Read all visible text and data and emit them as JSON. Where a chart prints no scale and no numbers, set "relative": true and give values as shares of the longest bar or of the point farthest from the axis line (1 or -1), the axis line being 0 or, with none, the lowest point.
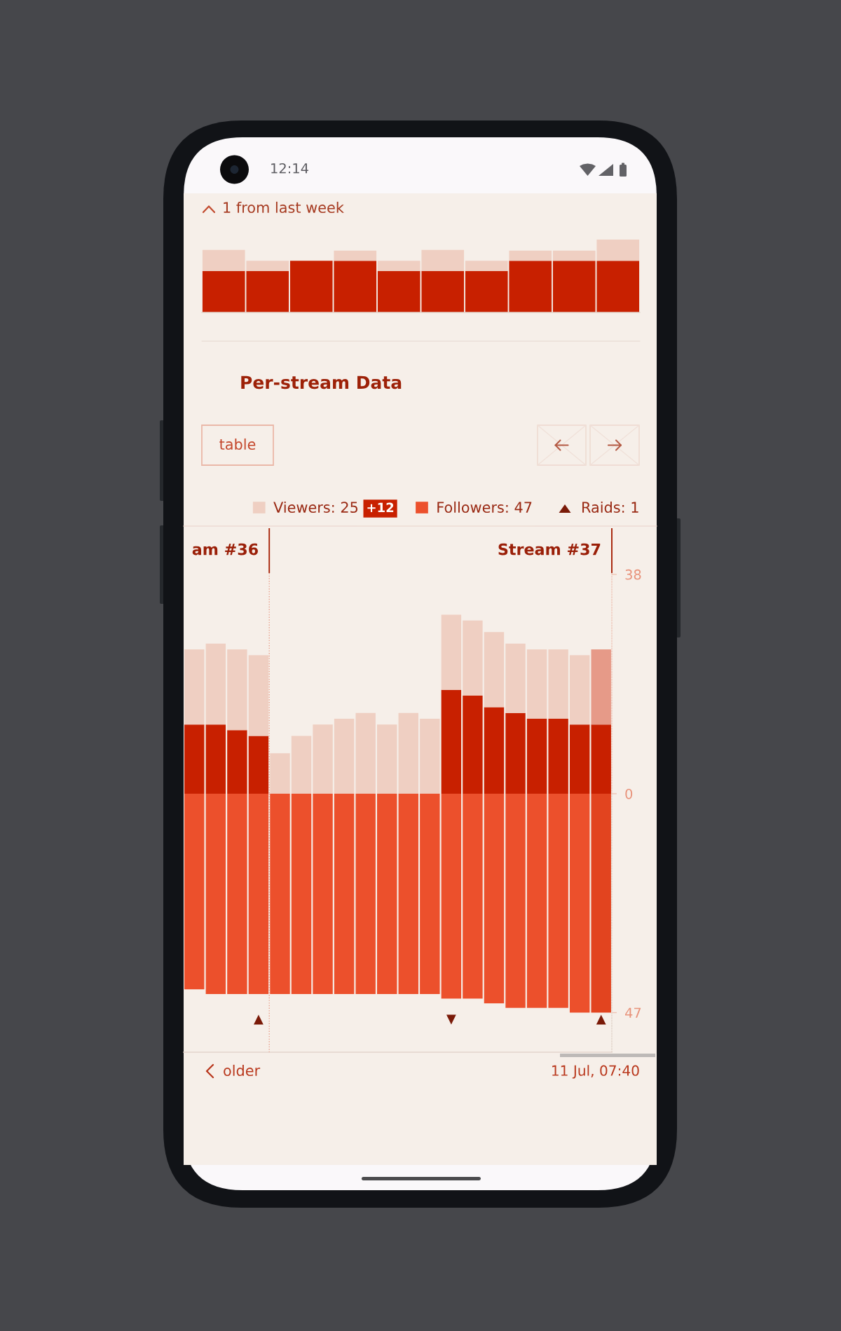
{
  "chart_data": [
    {
      "type": "bar",
      "stacked": true,
      "relative": true,
      "categories": [
        null,
        null,
        null,
        null,
        null,
        null,
        null,
        null,
        null,
        null
      ],
      "series": [
        {
          "color": "#c82000",
          "values": [
            0.57,
            0.57,
            0.71,
            0.71,
            0.57,
            0.57,
            0.57,
            0.71,
            0.71,
            0.71
          ]
        },
        {
          "color": "#efcfc2",
          "values": [
            0.29,
            0.14,
            null,
            0.14,
            0.14,
            0.29,
            0.14,
            0.14,
            0.14,
            0.29
          ]
        }
      ],
      "annotations": [
        "12:14",
        "1 from last week"
      ]
    },
    {
      "type": "bar",
      "title": "Per-stream Data",
      "stacked": true,
      "categories": [
        null,
        null,
        null,
        null,
        null,
        null,
        null,
        null,
        null,
        null,
        null,
        null,
        null,
        null,
        null,
        null,
        null,
        null,
        null,
        null
      ],
      "series": [
        {
          "color": "#c82000",
          "values": [
            12,
            12,
            11,
            10,
            null,
            null,
            null,
            null,
            null,
            null,
            null,
            null,
            18,
            17,
            15,
            14,
            13,
            13,
            12,
            12
          ]
        },
        {
          "name": "Viewers: 25",
          "color": "#efcfc2",
          "colors": [
            "#efcfc2",
            "#efcfc2",
            "#efcfc2",
            "#efcfc2",
            "#efcfc2",
            "#efcfc2",
            "#efcfc2",
            "#efcfc2",
            "#efcfc2",
            "#efcfc2",
            "#efcfc2",
            "#efcfc2",
            "#efcfc2",
            "#efcfc2",
            "#efcfc2",
            "#efcfc2",
            "#efcfc2",
            "#efcfc2",
            "#efcfc2",
            "#e69a88"
          ],
          "values": [
            13,
            14,
            14,
            14,
            7,
            10,
            12,
            13,
            14,
            12,
            14,
            13,
            13,
            13,
            13,
            12,
            12,
            12,
            12,
            13
          ]
        }
      ],
      "ylim": [
        0,
        46
      ],
      "yticks": [
        38
      ],
      "annotations": [
        "table",
        "+12",
        "am #36",
        "Stream #37"
      ],
      "legend": "top"
    },
    {
      "type": "bar",
      "categories": [
        null,
        null,
        null,
        "▲",
        null,
        null,
        null,
        null,
        null,
        null,
        null,
        null,
        "▼",
        null,
        null,
        null,
        null,
        null,
        null,
        "▲"
      ],
      "series": [
        {
          "name": "Followers: 47",
          "color": "#ec502c",
          "colors": [
            "#ec502c",
            "#ec502c",
            "#ec502c",
            "#ec502c",
            "#ec502c",
            "#ec502c",
            "#ec502c",
            "#ec502c",
            "#ec502c",
            "#ec502c",
            "#ec502c",
            "#ec502c",
            "#ec502c",
            "#ec502c",
            "#ec502c",
            "#ec502c",
            "#ec502c",
            "#ec502c",
            "#ec502c",
            "#e2441f"
          ],
          "values": [
            42,
            43,
            43,
            43,
            43,
            43,
            43,
            43,
            43,
            43,
            43,
            43,
            44,
            44,
            45,
            46,
            46,
            46,
            47,
            47
          ]
        }
      ],
      "ylim": [
        55.5,
        0
      ],
      "yticks": [
        0,
        47
      ],
      "annotations": [
        "Raids: 1",
        "older",
        "11 Jul, 07:40"
      ]
    }
  ]
}
